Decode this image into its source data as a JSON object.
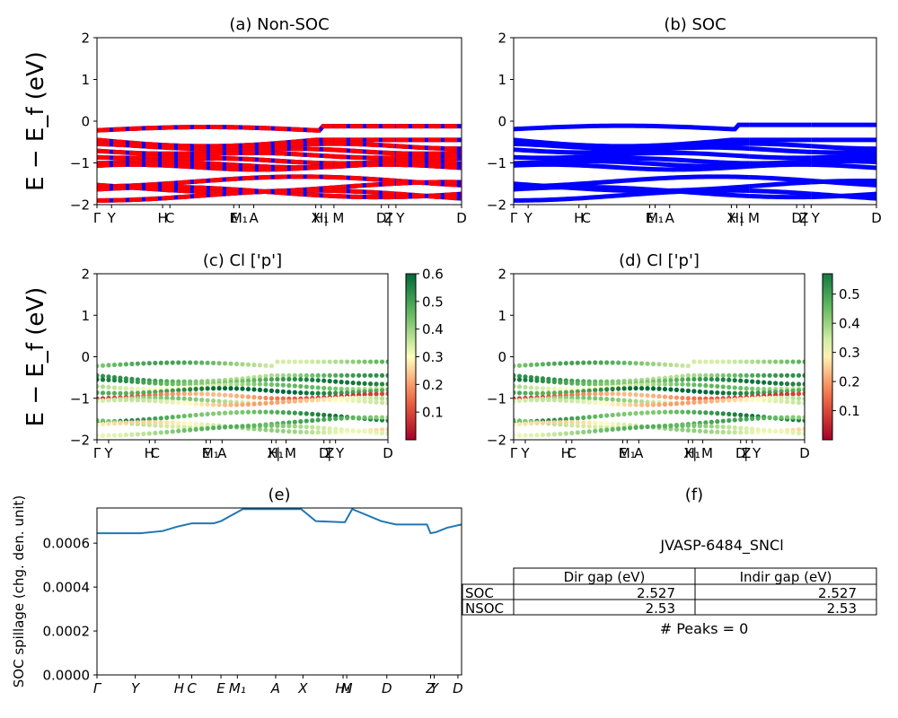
{
  "chart_data": [
    {
      "id": "a",
      "type": "line",
      "title": "(a) Non-SOC",
      "ylabel": "E − E_f (eV)",
      "ylim": [
        -2,
        2
      ],
      "yticks": [
        "2",
        "1",
        "0",
        "−1",
        "−2"
      ],
      "xticks": [
        "Γ",
        "Y",
        "H",
        "C",
        "E",
        "M₁",
        "A",
        "X",
        "H₁",
        "| M",
        "D",
        "Z",
        "| Y",
        "D"
      ],
      "series_colors": [
        "#ff0000",
        "#0000ff"
      ],
      "bands_ev_at_gamma": [
        -0.25,
        -0.45,
        -0.6,
        -0.75,
        -0.85,
        -1.0,
        -1.1,
        -1.6,
        -1.75,
        -1.8
      ]
    },
    {
      "id": "b",
      "type": "line",
      "title": "(b) SOC",
      "ylim": [
        -2,
        2
      ],
      "yticks": [
        "2",
        "1",
        "0",
        "−1",
        "−2"
      ],
      "xticks": [
        "Γ",
        "Y",
        "H",
        "C",
        "E",
        "M₁",
        "A",
        "X",
        "H₁",
        "| M",
        "D",
        "Z",
        "| Y",
        "D"
      ],
      "series_colors": [
        "#0000ff"
      ]
    },
    {
      "id": "c",
      "type": "scatter",
      "title": "(c)  Cl ['p']",
      "ylabel": "E − E_f (eV)",
      "ylim": [
        -2,
        2
      ],
      "yticks": [
        "2",
        "1",
        "0",
        "−1",
        "−2"
      ],
      "xticks": [
        "Γ",
        "Y",
        "H",
        "C",
        "E",
        "M₁",
        "A",
        "X",
        "H₁",
        "| M",
        "D",
        "Z",
        "| Y",
        "D"
      ],
      "colorbar": {
        "cmap": "RdYlGn",
        "range": [
          0,
          0.6
        ],
        "ticks": [
          "0.6",
          "0.5",
          "0.4",
          "0.3",
          "0.2",
          "0.1"
        ]
      }
    },
    {
      "id": "d",
      "type": "scatter",
      "title": "(d) Cl ['p']",
      "ylim": [
        -2,
        2
      ],
      "yticks": [
        "2",
        "1",
        "0",
        "−1",
        "−2"
      ],
      "xticks": [
        "Γ",
        "Y",
        "H",
        "C",
        "E",
        "M₁",
        "A",
        "X",
        "H₁",
        "| M",
        "D",
        "Z",
        "| Y",
        "D"
      ],
      "colorbar": {
        "cmap": "RdYlGn",
        "range": [
          0,
          0.57
        ],
        "ticks": [
          "0.5",
          "0.4",
          "0.3",
          "0.2",
          "0.1"
        ]
      }
    },
    {
      "id": "e",
      "type": "line",
      "title": "(e)",
      "ylabel": "SOC spillage (chg. den. unit)",
      "ylim": [
        0,
        0.00076
      ],
      "yticks": [
        "0.0000",
        "0.0002",
        "0.0004",
        "0.0006"
      ],
      "xticks": [
        "Γ",
        "Y",
        "H",
        "C",
        "E",
        "M₁",
        "A",
        "X",
        "H₁",
        "M",
        "D",
        "Z",
        "Y",
        "D"
      ],
      "line_color": "#1f77b4",
      "x": [
        0,
        0.12,
        0.18,
        0.22,
        0.26,
        0.32,
        0.34,
        0.4,
        0.5,
        0.52,
        0.56,
        0.6,
        0.68,
        0.7,
        0.78,
        0.82,
        0.905,
        0.915,
        0.93,
        0.96,
        1.0
      ],
      "values": [
        0.000645,
        0.000645,
        0.000655,
        0.000675,
        0.00069,
        0.00069,
        0.0007,
        0.000755,
        0.000755,
        0.000755,
        0.000755,
        0.0007,
        0.000695,
        0.000755,
        0.0007,
        0.000685,
        0.000685,
        0.000645,
        0.00065,
        0.00067,
        0.000685
      ]
    },
    {
      "id": "f",
      "type": "table",
      "title": "(f)",
      "caption": "JVASP-6484_SNCl",
      "columns": [
        "Dir gap (eV)",
        "Indir gap (eV)"
      ],
      "rows": [
        {
          "label": "SOC",
          "values": [
            "2.527",
            "2.527"
          ]
        },
        {
          "label": "NSOC",
          "values": [
            "2.53",
            "2.53"
          ]
        }
      ],
      "footer": "# Peaks = 0"
    }
  ]
}
